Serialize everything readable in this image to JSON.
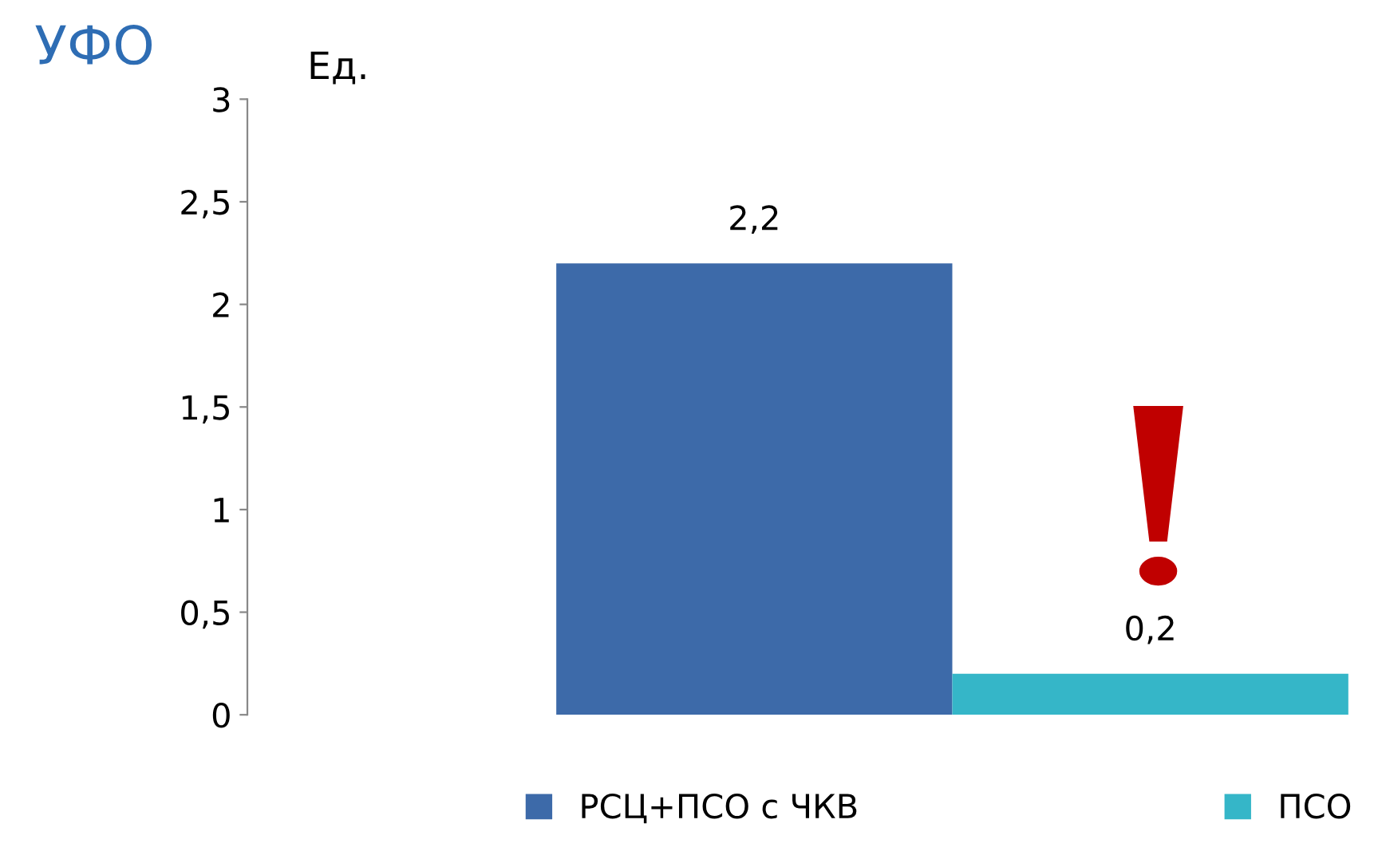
{
  "chart_data": {
    "type": "bar",
    "title": "УФО",
    "ylabel": "Ед.",
    "categories": [
      null
    ],
    "series": [
      {
        "name": "РСЦ+ПСО с ЧКВ",
        "color": "#3d6aa9",
        "values": [
          2.2
        ],
        "value_labels": [
          "2,2"
        ]
      },
      {
        "name": "ПСО",
        "color": "#35b6c8",
        "values": [
          0.2
        ],
        "value_labels": [
          "0,2"
        ]
      }
    ],
    "ylim": [
      0,
      3
    ],
    "yticks": [
      0,
      {
        "value": 0.5,
        "label": "0,5"
      },
      1,
      {
        "value": 1.5,
        "label": "1,5"
      },
      2,
      {
        "value": 2.5,
        "label": "2,5"
      },
      3
    ],
    "grid": false,
    "legend": "bottom",
    "tick_labels": "y"
  }
}
